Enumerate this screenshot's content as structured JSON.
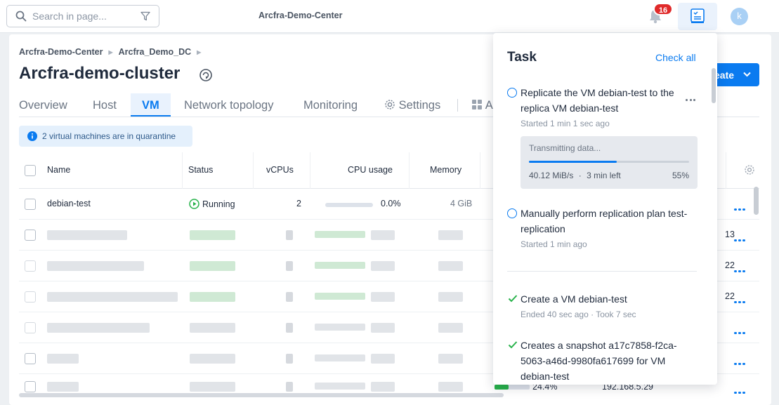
{
  "topbar": {
    "search_placeholder": "Search in page...",
    "app_title": "Arcfra-Demo-Center",
    "notification_count": "16",
    "avatar_letter": "k"
  },
  "breadcrumb": [
    "Arcfra-Demo-Center",
    "Arcfra_Demo_DC"
  ],
  "cluster_title": "Arcfra-demo-cluster",
  "create_label": "eate",
  "tabs": [
    "Overview",
    "Host",
    "VM",
    "Network topology",
    "Monitoring",
    "Settings"
  ],
  "tab_partial": "A",
  "active_tab": "VM",
  "notice": "2 virtual machines are in quarantine",
  "table": {
    "columns": [
      "Name",
      "Status",
      "vCPUs",
      "CPU usage",
      "Memory"
    ],
    "rows": [
      {
        "name": "debian-test",
        "status": "Running",
        "vcpus": "2",
        "cpu_usage": "0.0%",
        "memory": "4 GiB"
      }
    ],
    "partial_values": [
      "13",
      "22",
      "22"
    ],
    "last_row": {
      "usage": "24.4%",
      "ip": "192.168.5.29"
    }
  },
  "task_panel": {
    "title": "Task",
    "check_all": "Check all",
    "running": [
      {
        "title": "Replicate the VM debian-test to the replica VM debian-test",
        "subtitle": "Started 1 min 1 sec ago",
        "progress": {
          "label": "Transmitting data...",
          "speed": "40.12 MiB/s",
          "remaining": "3 min left",
          "percent": "55%",
          "fraction": 0.55
        }
      },
      {
        "title": "Manually perform replication plan test-replication",
        "subtitle": "Started 1 min ago"
      }
    ],
    "done": [
      {
        "title": "Create a VM debian-test",
        "subtitle": "Ended 40 sec ago · Took 7 sec"
      },
      {
        "title": "Creates a snapshot a17c7858-f2ca-5063-a46d-9980fa617699 for VM debian-test"
      }
    ]
  }
}
